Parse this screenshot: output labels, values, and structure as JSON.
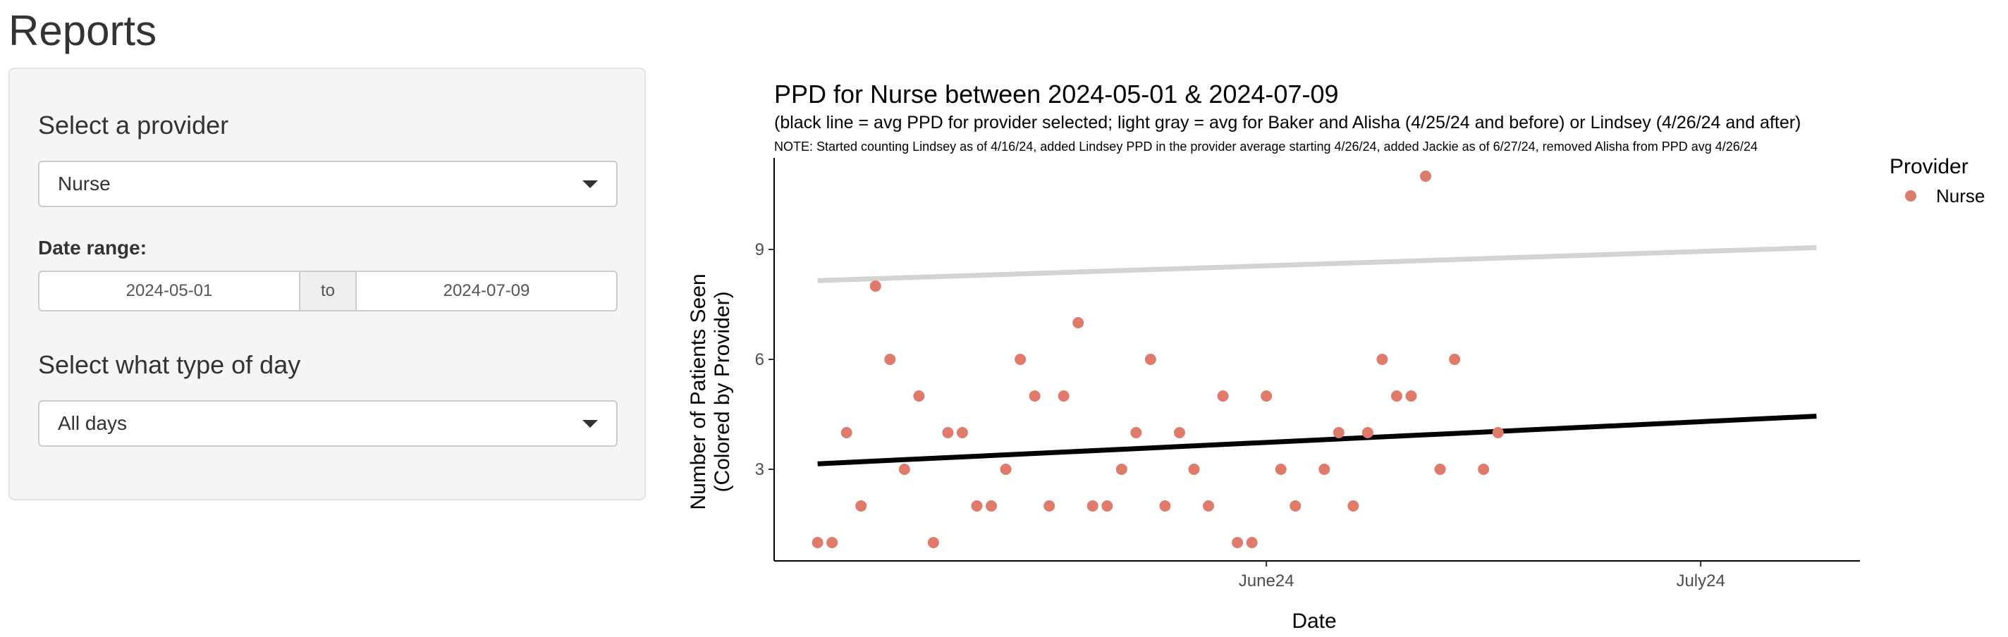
{
  "page": {
    "title": "Reports"
  },
  "sidebar": {
    "provider_label": "Select a provider",
    "provider_value": "Nurse",
    "date_range_label": "Date range:",
    "date_start": "2024-05-01",
    "date_separator": "to",
    "date_end": "2024-07-09",
    "day_type_label": "Select what type of day",
    "day_type_value": "All days"
  },
  "chart_data": {
    "type": "scatter",
    "title": "PPD for Nurse between 2024-05-01 & 2024-07-09",
    "subtitle": "(black line = avg PPD for provider selected; light gray = avg for Baker and Alisha (4/25/24 and before) or Lindsey (4/26/24 and after)",
    "note": "NOTE: Started counting Lindsey as of 4/16/24, added Lindsey PPD in the provider average starting 4/26/24, added Jackie as of 6/27/24, removed Alisha from PPD avg 4/26/24",
    "xlabel": "Date",
    "ylabel_lines": [
      "Number of Patients Seen",
      "(Colored by Provider)"
    ],
    "x_ticks": [
      {
        "label": "June24",
        "date": "2024-06-01"
      },
      {
        "label": "July24",
        "date": "2024-07-01"
      }
    ],
    "y_ticks": [
      3,
      6,
      9
    ],
    "xlim": [
      "2024-04-28",
      "2024-07-12"
    ],
    "ylim": [
      0.5,
      11.5
    ],
    "legend": {
      "title": "Provider",
      "position": "right",
      "entries": [
        {
          "name": "Nurse",
          "color": "#E07B6C"
        }
      ]
    },
    "series": [
      {
        "name": "Nurse",
        "color": "#E07B6C",
        "points": [
          [
            "2024-05-01",
            1
          ],
          [
            "2024-05-02",
            1
          ],
          [
            "2024-05-03",
            4
          ],
          [
            "2024-05-04",
            2
          ],
          [
            "2024-05-05",
            8
          ],
          [
            "2024-05-06",
            6
          ],
          [
            "2024-05-07",
            3
          ],
          [
            "2024-05-08",
            5
          ],
          [
            "2024-05-09",
            1
          ],
          [
            "2024-05-10",
            4
          ],
          [
            "2024-05-11",
            4
          ],
          [
            "2024-05-12",
            2
          ],
          [
            "2024-05-13",
            2
          ],
          [
            "2024-05-14",
            3
          ],
          [
            "2024-05-15",
            6
          ],
          [
            "2024-05-16",
            5
          ],
          [
            "2024-05-17",
            2
          ],
          [
            "2024-05-18",
            5
          ],
          [
            "2024-05-19",
            7
          ],
          [
            "2024-05-20",
            2
          ],
          [
            "2024-05-21",
            2
          ],
          [
            "2024-05-22",
            3
          ],
          [
            "2024-05-23",
            4
          ],
          [
            "2024-05-24",
            6
          ],
          [
            "2024-05-25",
            2
          ],
          [
            "2024-05-26",
            4
          ],
          [
            "2024-05-27",
            3
          ],
          [
            "2024-05-28",
            2
          ],
          [
            "2024-05-29",
            5
          ],
          [
            "2024-05-30",
            1
          ],
          [
            "2024-05-31",
            1
          ],
          [
            "2024-06-01",
            5
          ],
          [
            "2024-06-02",
            3
          ],
          [
            "2024-06-03",
            2
          ],
          [
            "2024-06-05",
            3
          ],
          [
            "2024-06-06",
            4
          ],
          [
            "2024-06-07",
            2
          ],
          [
            "2024-06-08",
            4
          ],
          [
            "2024-06-09",
            6
          ],
          [
            "2024-06-10",
            5
          ],
          [
            "2024-06-11",
            5
          ],
          [
            "2024-06-12",
            11
          ],
          [
            "2024-06-13",
            3
          ],
          [
            "2024-06-14",
            6
          ],
          [
            "2024-06-16",
            3
          ],
          [
            "2024-06-17",
            4
          ]
        ]
      }
    ],
    "trend_lines": [
      {
        "name": "avg PPD for provider selected",
        "color": "#000000",
        "start": [
          "2024-05-01",
          3.15
        ],
        "end": [
          "2024-07-09",
          4.45
        ]
      },
      {
        "name": "avg for Baker and Alisha or Lindsey",
        "color": "#D3D3D3",
        "start": [
          "2024-05-01",
          8.15
        ],
        "end": [
          "2024-07-09",
          9.05
        ]
      }
    ]
  }
}
